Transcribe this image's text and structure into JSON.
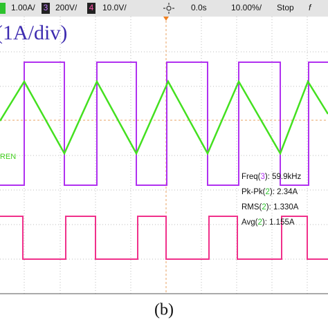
{
  "toolbar": {
    "ch1_scale": "1.00A/",
    "ch3_badge": "3",
    "ch3_scale": "200V/",
    "ch4_badge": "4",
    "ch4_scale": "10.0V/",
    "time_offset": "0.0s",
    "time_scale": "10.00%/",
    "status": "Stop",
    "trigger": "f"
  },
  "axis_label": "(1A/div)",
  "trace_label": "REN",
  "measurements": [
    {
      "name": "Freq(",
      "channel": "3",
      "value": "): 59.9kHz"
    },
    {
      "name": "Pk-Pk(",
      "channel": "2",
      "value": "): 2.34A"
    },
    {
      "name": "RMS(",
      "channel": "2",
      "value": "): 1.330A"
    },
    {
      "name": "Avg(",
      "channel": "2",
      "value": "): 1.155A"
    }
  ],
  "caption": "(b)"
}
